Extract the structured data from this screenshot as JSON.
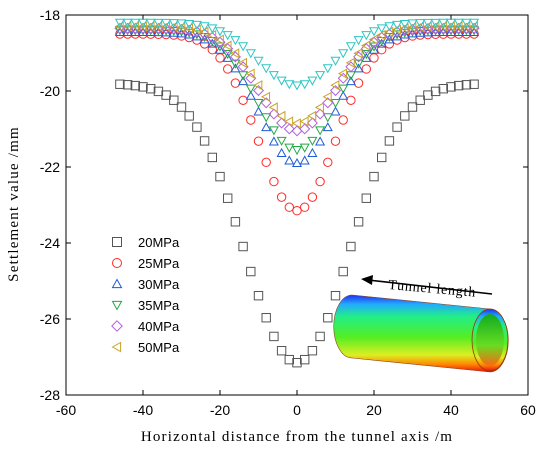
{
  "chart_data": {
    "type": "scatter",
    "xlabel": "Horizontal distance from the tunnel axis /m",
    "ylabel": "Settlement value /mm",
    "xlim": [
      -60,
      60
    ],
    "ylim": [
      -28,
      -18
    ],
    "xticks": [
      -60,
      -40,
      -20,
      0,
      20,
      40,
      60
    ],
    "yticks": [
      -28,
      -26,
      -24,
      -22,
      -20,
      -18
    ],
    "grid": false,
    "legend_position": "left",
    "annotation": "Tunnel length",
    "x": [
      -46,
      -44,
      -42,
      -40,
      -38,
      -36,
      -34,
      -32,
      -30,
      -28,
      -26,
      -24,
      -22,
      -20,
      -18,
      -16,
      -14,
      -12,
      -10,
      -8,
      -6,
      -4,
      -2,
      0,
      2,
      4,
      6,
      8,
      10,
      12,
      14,
      16,
      18,
      20,
      22,
      24,
      26,
      28,
      30,
      32,
      34,
      36,
      38,
      40,
      42,
      44,
      46
    ],
    "series": [
      {
        "name": "20MPa",
        "marker": "square",
        "color": "#555555",
        "min": -27.15,
        "max": -19.8,
        "sigma": 13.5
      },
      {
        "name": "25MPa",
        "marker": "circle",
        "color": "#ff2a2a",
        "min": -23.15,
        "max": -18.5,
        "sigma": 10
      },
      {
        "name": "30MPa",
        "marker": "triangle-up",
        "color": "#1f5bd8",
        "min": -21.9,
        "max": -18.45,
        "sigma": 10
      },
      {
        "name": "35MPa",
        "marker": "triangle-down",
        "color": "#22a844",
        "min": -21.55,
        "max": -18.4,
        "sigma": 10
      },
      {
        "name": "40MPa",
        "marker": "diamond",
        "color": "#b25ee0",
        "min": -21.05,
        "max": -18.35,
        "sigma": 10
      },
      {
        "name": "50MPa",
        "marker": "triangle-left",
        "color": "#c9a227",
        "min": -20.85,
        "max": -18.3,
        "sigma": 10
      },
      {
        "name": "",
        "marker": "triangle-down",
        "color": "#2ec4c4",
        "min": -19.85,
        "max": -18.2,
        "sigma": 10
      }
    ]
  }
}
